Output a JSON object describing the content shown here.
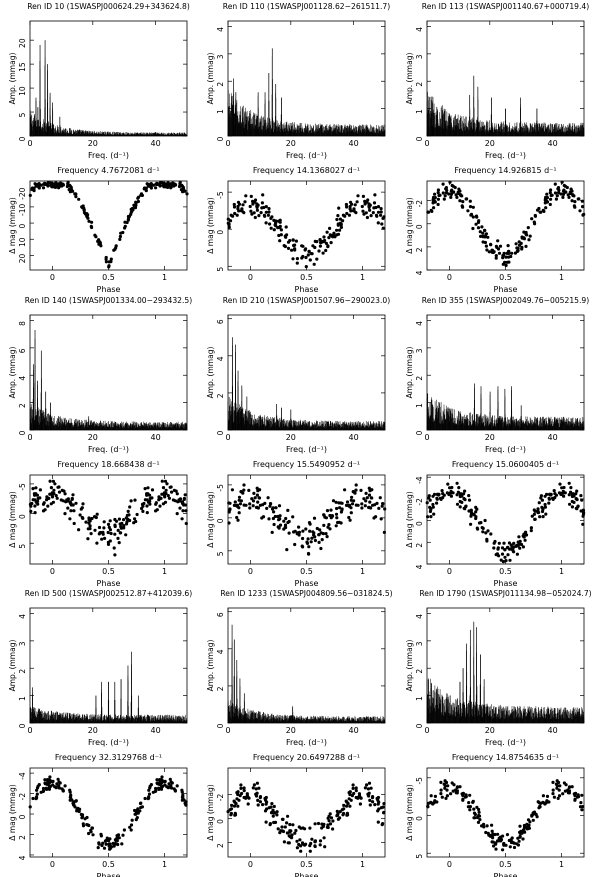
{
  "figure": {
    "ylabel_amp": "Amp. (mmag)",
    "ylabel_mag": "Δ mag (mmag)",
    "xlabel_freq": "Freq. (d⁻¹)",
    "xlabel_phase": "Phase",
    "freq_prefix": "Frequency",
    "freq_unit": "d⁻¹"
  },
  "chart_data": [
    {
      "ren_id": "Ren ID 10",
      "swasp": "(1SWASPJ000624.29+343624.8)",
      "frequency": "4.7672081",
      "periodogram": {
        "type": "line",
        "xlim": [
          0,
          50
        ],
        "ylim": [
          0,
          24
        ],
        "yticks": [
          0,
          5,
          10,
          15,
          20
        ],
        "xticks": [
          0,
          20,
          40
        ],
        "peaks": [
          [
            3.2,
            19
          ],
          [
            4.8,
            20
          ],
          [
            5.6,
            15
          ],
          [
            1.9,
            8
          ],
          [
            2.5,
            6
          ],
          [
            6.4,
            9
          ],
          [
            7.2,
            7
          ],
          [
            9.5,
            4
          ]
        ],
        "noise_low": 4,
        "noise_high": 0.6
      },
      "phase": {
        "type": "scatter",
        "xlim": [
          -0.2,
          1.2
        ],
        "ylim": [
          29,
          -26
        ],
        "yticks": [
          -20,
          -10,
          0,
          10,
          20
        ],
        "xticks": [
          0,
          0.5,
          1
        ],
        "amplitude": 24,
        "shape": "eclipse",
        "scatter": 2
      }
    },
    {
      "ren_id": "Ren ID 110",
      "swasp": "(1SWASPJ001128.62−261511.7)",
      "frequency": "14.1368027",
      "periodogram": {
        "type": "line",
        "xlim": [
          0,
          50
        ],
        "ylim": [
          0,
          4.2
        ],
        "yticks": [
          0,
          1,
          2,
          3,
          4
        ],
        "xticks": [
          0,
          20,
          40
        ],
        "peaks": [
          [
            14.1,
            3.2
          ],
          [
            13.0,
            2.3
          ],
          [
            15.2,
            1.9
          ],
          [
            11.8,
            1.6
          ],
          [
            1.8,
            2.1
          ],
          [
            2.5,
            1.6
          ],
          [
            9.6,
            1.6
          ],
          [
            17.0,
            1.4
          ]
        ],
        "noise_low": 1.1,
        "noise_high": 0.35
      },
      "phase": {
        "type": "scatter",
        "xlim": [
          -0.2,
          1.2
        ],
        "ylim": [
          5.5,
          -6.5
        ],
        "yticks": [
          -5,
          0,
          5
        ],
        "xticks": [
          0,
          0.5,
          1
        ],
        "amplitude": 3.5,
        "shape": "sine",
        "scatter": 1.6
      }
    },
    {
      "ren_id": "Ren ID 113",
      "swasp": "(1SWASPJ001140.67+000719.4)",
      "frequency": "14.926815",
      "periodogram": {
        "type": "line",
        "xlim": [
          0,
          50
        ],
        "ylim": [
          0,
          4.2
        ],
        "yticks": [
          0,
          1,
          2,
          3,
          4
        ],
        "xticks": [
          0,
          20,
          40
        ],
        "peaks": [
          [
            14.9,
            2.2
          ],
          [
            16.2,
            1.8
          ],
          [
            13.6,
            1.5
          ],
          [
            20.5,
            1.4
          ],
          [
            29.8,
            1.4
          ],
          [
            25.0,
            1.0
          ],
          [
            1.8,
            1.2
          ],
          [
            35.0,
            1.0
          ]
        ],
        "noise_low": 1.0,
        "noise_high": 0.4
      },
      "phase": {
        "type": "scatter",
        "xlim": [
          -0.2,
          1.2
        ],
        "ylim": [
          4,
          -3.7
        ],
        "yticks": [
          -2,
          0,
          2,
          4
        ],
        "xticks": [
          0,
          0.5,
          1
        ],
        "amplitude": 2.8,
        "shape": "sine",
        "scatter": 0.9
      }
    },
    {
      "ren_id": "Ren ID 140",
      "swasp": "(1SWASPJ001334.00−293432.5)",
      "frequency": "18.668438",
      "periodogram": {
        "type": "line",
        "xlim": [
          0,
          50
        ],
        "ylim": [
          0,
          8.4
        ],
        "yticks": [
          0,
          2,
          4,
          6,
          8
        ],
        "xticks": [
          0,
          20,
          40
        ],
        "peaks": [
          [
            1.6,
            7.3
          ],
          [
            1.1,
            4.8
          ],
          [
            3.6,
            5.8
          ],
          [
            2.4,
            3.6
          ],
          [
            5.0,
            2.8
          ],
          [
            6.5,
            2.0
          ],
          [
            18.7,
            1.0
          ]
        ],
        "noise_low": 1.2,
        "noise_high": 0.5
      },
      "phase": {
        "type": "scatter",
        "xlim": [
          -0.2,
          1.2
        ],
        "ylim": [
          8.5,
          -6.5
        ],
        "yticks": [
          -5,
          0,
          5
        ],
        "xticks": [
          0,
          0.5,
          1
        ],
        "amplitude": 3.5,
        "shape": "sine",
        "scatter": 2.8
      }
    },
    {
      "ren_id": "Ren ID 210",
      "swasp": "(1SWASPJ001507.96−290023.0)",
      "frequency": "15.5490952",
      "periodogram": {
        "type": "line",
        "xlim": [
          0,
          50
        ],
        "ylim": [
          0,
          6.2
        ],
        "yticks": [
          0,
          2,
          4,
          6
        ],
        "xticks": [
          0,
          20,
          40
        ],
        "peaks": [
          [
            1.4,
            5.0
          ],
          [
            2.4,
            4.6
          ],
          [
            3.2,
            3.2
          ],
          [
            4.4,
            2.4
          ],
          [
            15.5,
            1.4
          ],
          [
            17.0,
            1.2
          ],
          [
            20.0,
            1.1
          ],
          [
            6.0,
            1.8
          ]
        ],
        "noise_low": 1.2,
        "noise_high": 0.4
      },
      "phase": {
        "type": "scatter",
        "xlim": [
          -0.2,
          1.2
        ],
        "ylim": [
          7,
          -6.5
        ],
        "yticks": [
          -5,
          0,
          5
        ],
        "xticks": [
          0,
          0.5,
          1
        ],
        "amplitude": 3.0,
        "shape": "sine",
        "scatter": 2.6
      }
    },
    {
      "ren_id": "Ren ID 355",
      "swasp": "(1SWASPJ002049.76−005215.9)",
      "frequency": "15.0600405",
      "periodogram": {
        "type": "line",
        "xlim": [
          0,
          50
        ],
        "ylim": [
          0,
          4.2
        ],
        "yticks": [
          0,
          1,
          2,
          3,
          4
        ],
        "xticks": [
          0,
          20,
          40
        ],
        "peaks": [
          [
            15.1,
            1.7
          ],
          [
            17.2,
            1.6
          ],
          [
            20.1,
            1.4
          ],
          [
            22.6,
            1.6
          ],
          [
            24.8,
            1.5
          ],
          [
            26.9,
            1.6
          ],
          [
            1.0,
            1.0
          ],
          [
            30.0,
            0.9
          ]
        ],
        "noise_low": 0.8,
        "noise_high": 0.4
      },
      "phase": {
        "type": "scatter",
        "xlim": [
          -0.2,
          1.2
        ],
        "ylim": [
          4,
          -4.2
        ],
        "yticks": [
          -4,
          -2,
          0,
          2,
          4
        ],
        "xticks": [
          0,
          0.5,
          1
        ],
        "amplitude": 2.8,
        "shape": "sine",
        "scatter": 1.0
      }
    },
    {
      "ren_id": "Ren ID 500",
      "swasp": "(1SWASPJ002512.87+412039.6)",
      "frequency": "32.3129768",
      "periodogram": {
        "type": "line",
        "xlim": [
          0,
          50
        ],
        "ylim": [
          0,
          4.2
        ],
        "yticks": [
          0,
          1,
          2,
          3,
          4
        ],
        "xticks": [
          0,
          20,
          40
        ],
        "peaks": [
          [
            32.3,
            2.6
          ],
          [
            31.2,
            2.1
          ],
          [
            29.0,
            1.6
          ],
          [
            27.0,
            1.5
          ],
          [
            25.0,
            1.5
          ],
          [
            22.8,
            1.5
          ],
          [
            21.0,
            1.0
          ],
          [
            0.8,
            1.3
          ],
          [
            34.5,
            1.0
          ]
        ],
        "noise_low": 0.3,
        "noise_high": 0.25
      },
      "phase": {
        "type": "scatter",
        "xlim": [
          -0.2,
          1.2
        ],
        "ylim": [
          4.2,
          -4.5
        ],
        "yticks": [
          -4,
          -2,
          0,
          2,
          4
        ],
        "xticks": [
          0,
          0.5,
          1
        ],
        "amplitude": 3.0,
        "shape": "sine",
        "scatter": 0.7
      }
    },
    {
      "ren_id": "Ren ID 1233",
      "swasp": "(1SWASPJ004809.56−031824.5)",
      "frequency": "20.6497288",
      "periodogram": {
        "type": "line",
        "xlim": [
          0,
          50
        ],
        "ylim": [
          0,
          6.2
        ],
        "yticks": [
          0,
          2,
          4,
          6
        ],
        "xticks": [
          0,
          20,
          40
        ],
        "peaks": [
          [
            1.3,
            5.3
          ],
          [
            2.0,
            4.5
          ],
          [
            2.8,
            3.4
          ],
          [
            3.8,
            2.4
          ],
          [
            5.2,
            1.6
          ],
          [
            20.6,
            0.9
          ]
        ],
        "noise_low": 0.8,
        "noise_high": 0.3
      },
      "phase": {
        "type": "scatter",
        "xlim": [
          -0.2,
          1.2
        ],
        "ylim": [
          3.2,
          -4.2
        ],
        "yticks": [
          -2,
          0,
          2
        ],
        "xticks": [
          0,
          0.5,
          1
        ],
        "amplitude": 1.8,
        "shape": "sine",
        "scatter": 1.2
      }
    },
    {
      "ren_id": "Ren ID 1790",
      "swasp": "(1SWASPJ011134.98−052024.7)",
      "frequency": "14.8754635",
      "periodogram": {
        "type": "line",
        "xlim": [
          0,
          50
        ],
        "ylim": [
          0,
          4.2
        ],
        "yticks": [
          0,
          1,
          2,
          3,
          4
        ],
        "xticks": [
          0,
          20,
          40
        ],
        "peaks": [
          [
            14.9,
            3.7
          ],
          [
            13.8,
            3.4
          ],
          [
            15.8,
            3.5
          ],
          [
            12.6,
            2.9
          ],
          [
            17.0,
            2.5
          ],
          [
            11.5,
            2.0
          ],
          [
            10.5,
            1.5
          ],
          [
            18.2,
            1.6
          ]
        ],
        "noise_low": 1.0,
        "noise_high": 0.5
      },
      "phase": {
        "type": "scatter",
        "xlim": [
          -0.2,
          1.2
        ],
        "ylim": [
          5.5,
          -6.3
        ],
        "yticks": [
          -5,
          0,
          5
        ],
        "xticks": [
          0,
          0.5,
          1
        ],
        "amplitude": 3.8,
        "shape": "sine",
        "scatter": 1.1
      }
    }
  ]
}
